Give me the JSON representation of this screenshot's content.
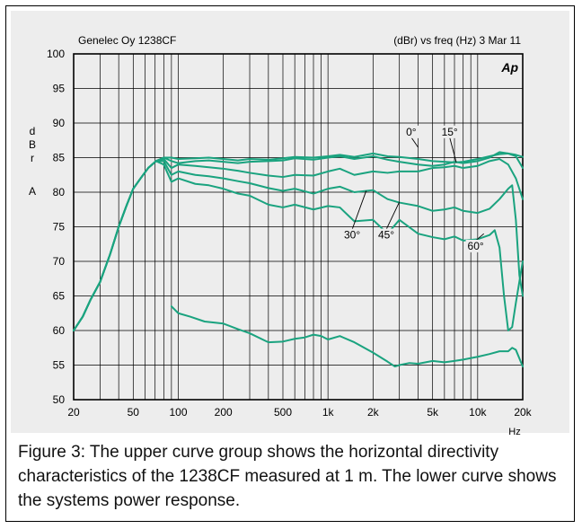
{
  "chart_data": {
    "type": "line",
    "header_left": "Genelec Oy 1238CF",
    "header_right": "(dBr) vs freq (Hz) 3 Mar 11",
    "logo": "Ap",
    "ylabel_letters": [
      "d",
      "B",
      "r",
      "A"
    ],
    "xlabel": "Hz",
    "xscale": "log",
    "xlim": [
      20,
      20000
    ],
    "ylim": [
      50,
      100
    ],
    "grid": true,
    "line_color": "#1aa37f",
    "y_ticks": [
      "100",
      "95",
      "90",
      "85",
      "80",
      "75",
      "70",
      "65",
      "60",
      "55",
      "50"
    ],
    "x_ticks": [
      {
        "value": 20,
        "label": "20"
      },
      {
        "value": 50,
        "label": "50"
      },
      {
        "value": 100,
        "label": "100"
      },
      {
        "value": 200,
        "label": "200"
      },
      {
        "value": 500,
        "label": "500"
      },
      {
        "value": 1000,
        "label": "1k"
      },
      {
        "value": 2000,
        "label": "2k"
      },
      {
        "value": 5000,
        "label": "5k"
      },
      {
        "value": 10000,
        "label": "10k"
      },
      {
        "value": 20000,
        "label": "20k"
      }
    ],
    "series": [
      {
        "name": "0°",
        "points": [
          [
            20,
            60
          ],
          [
            23,
            62
          ],
          [
            26,
            64.5
          ],
          [
            30,
            67
          ],
          [
            35,
            71
          ],
          [
            40,
            75
          ],
          [
            45,
            78
          ],
          [
            50,
            80.5
          ],
          [
            56,
            82
          ],
          [
            63,
            83.5
          ],
          [
            71,
            84.5
          ],
          [
            80,
            85
          ],
          [
            90,
            85
          ],
          [
            100,
            84.8
          ],
          [
            130,
            84.9
          ],
          [
            160,
            85
          ],
          [
            200,
            84.8
          ],
          [
            250,
            84.6
          ],
          [
            300,
            84.8
          ],
          [
            400,
            84.7
          ],
          [
            500,
            84.9
          ],
          [
            600,
            85.1
          ],
          [
            800,
            85
          ],
          [
            1000,
            85.2
          ],
          [
            1200,
            85.4
          ],
          [
            1500,
            85.1
          ],
          [
            2000,
            85.6
          ],
          [
            2500,
            85.2
          ],
          [
            3000,
            85.1
          ],
          [
            4000,
            84.8
          ],
          [
            5000,
            84.5
          ],
          [
            6000,
            84.4
          ],
          [
            7000,
            84.3
          ],
          [
            8000,
            84.4
          ],
          [
            10000,
            84.8
          ],
          [
            12000,
            85.2
          ],
          [
            14000,
            85.5
          ],
          [
            16000,
            85.6
          ],
          [
            18000,
            85.4
          ],
          [
            20000,
            85.1
          ]
        ]
      },
      {
        "name": "15°",
        "points": [
          [
            20,
            60
          ],
          [
            23,
            62
          ],
          [
            26,
            64.5
          ],
          [
            30,
            67
          ],
          [
            35,
            71
          ],
          [
            40,
            75
          ],
          [
            45,
            78
          ],
          [
            50,
            80.5
          ],
          [
            56,
            82
          ],
          [
            63,
            83.5
          ],
          [
            71,
            84.5
          ],
          [
            80,
            85
          ],
          [
            90,
            84.5
          ],
          [
            100,
            84.2
          ],
          [
            130,
            84.5
          ],
          [
            160,
            84.6
          ],
          [
            200,
            84.4
          ],
          [
            250,
            84.2
          ],
          [
            300,
            84.4
          ],
          [
            400,
            84.5
          ],
          [
            500,
            84.6
          ],
          [
            600,
            84.9
          ],
          [
            800,
            84.7
          ],
          [
            1000,
            85
          ],
          [
            1200,
            85.2
          ],
          [
            1500,
            84.8
          ],
          [
            2000,
            85.2
          ],
          [
            2500,
            84.7
          ],
          [
            3000,
            84.4
          ],
          [
            4000,
            84
          ],
          [
            5000,
            83.8
          ],
          [
            6000,
            84
          ],
          [
            7000,
            84.4
          ],
          [
            8000,
            84.2
          ],
          [
            10000,
            84.5
          ],
          [
            12000,
            85
          ],
          [
            14000,
            85.8
          ],
          [
            16000,
            85.6
          ],
          [
            18000,
            85.2
          ],
          [
            20000,
            83.5
          ]
        ]
      },
      {
        "name": "30°",
        "points": [
          [
            20,
            60
          ],
          [
            23,
            62
          ],
          [
            26,
            64.5
          ],
          [
            30,
            67
          ],
          [
            35,
            71
          ],
          [
            40,
            75
          ],
          [
            45,
            78
          ],
          [
            50,
            80.5
          ],
          [
            56,
            82
          ],
          [
            63,
            83.5
          ],
          [
            71,
            84.5
          ],
          [
            80,
            84.8
          ],
          [
            90,
            83.5
          ],
          [
            100,
            84
          ],
          [
            130,
            83.8
          ],
          [
            160,
            83.6
          ],
          [
            200,
            83.4
          ],
          [
            250,
            83.1
          ],
          [
            300,
            82.8
          ],
          [
            400,
            82.4
          ],
          [
            500,
            82.2
          ],
          [
            600,
            82.5
          ],
          [
            800,
            82.4
          ],
          [
            1000,
            83
          ],
          [
            1200,
            83.4
          ],
          [
            1500,
            82.5
          ],
          [
            2000,
            83
          ],
          [
            2500,
            82.8
          ],
          [
            3000,
            83
          ],
          [
            4000,
            83
          ],
          [
            5000,
            83.5
          ],
          [
            6000,
            83.6
          ],
          [
            7000,
            83.8
          ],
          [
            8000,
            83.5
          ],
          [
            10000,
            83.8
          ],
          [
            12000,
            84.5
          ],
          [
            14000,
            84.8
          ],
          [
            16000,
            84
          ],
          [
            18000,
            82
          ],
          [
            20000,
            79
          ]
        ]
      },
      {
        "name": "45°",
        "points": [
          [
            20,
            60
          ],
          [
            23,
            62
          ],
          [
            26,
            64.5
          ],
          [
            30,
            67
          ],
          [
            35,
            71
          ],
          [
            40,
            75
          ],
          [
            45,
            78
          ],
          [
            50,
            80.5
          ],
          [
            56,
            82
          ],
          [
            63,
            83.5
          ],
          [
            71,
            84.5
          ],
          [
            80,
            84.5
          ],
          [
            90,
            82.5
          ],
          [
            100,
            83
          ],
          [
            130,
            82.5
          ],
          [
            160,
            82.3
          ],
          [
            200,
            82
          ],
          [
            250,
            81.6
          ],
          [
            300,
            81.3
          ],
          [
            400,
            80.6
          ],
          [
            500,
            80.2
          ],
          [
            600,
            80.5
          ],
          [
            800,
            79.8
          ],
          [
            1000,
            80.5
          ],
          [
            1200,
            80.8
          ],
          [
            1500,
            80
          ],
          [
            2000,
            80.3
          ],
          [
            2500,
            79
          ],
          [
            3000,
            78.5
          ],
          [
            4000,
            78
          ],
          [
            5000,
            77.3
          ],
          [
            6000,
            77.5
          ],
          [
            7000,
            77.8
          ],
          [
            8000,
            77.3
          ],
          [
            10000,
            77
          ],
          [
            12000,
            77.6
          ],
          [
            14000,
            79
          ],
          [
            16000,
            80.5
          ],
          [
            17000,
            81
          ],
          [
            18000,
            76
          ],
          [
            19000,
            68
          ],
          [
            20000,
            65
          ]
        ]
      },
      {
        "name": "60°",
        "points": [
          [
            20,
            60
          ],
          [
            23,
            62
          ],
          [
            26,
            64.5
          ],
          [
            30,
            67
          ],
          [
            35,
            71
          ],
          [
            40,
            75
          ],
          [
            45,
            78
          ],
          [
            50,
            80.5
          ],
          [
            56,
            82
          ],
          [
            63,
            83.5
          ],
          [
            71,
            84.5
          ],
          [
            80,
            84
          ],
          [
            90,
            81.5
          ],
          [
            100,
            82
          ],
          [
            130,
            81.2
          ],
          [
            160,
            81
          ],
          [
            200,
            80.5
          ],
          [
            250,
            79.8
          ],
          [
            300,
            79.5
          ],
          [
            400,
            78.2
          ],
          [
            500,
            77.8
          ],
          [
            600,
            78.2
          ],
          [
            800,
            77.5
          ],
          [
            1000,
            78
          ],
          [
            1200,
            77.8
          ],
          [
            1500,
            75.8
          ],
          [
            2000,
            76
          ],
          [
            2500,
            74
          ],
          [
            3000,
            76
          ],
          [
            4000,
            74
          ],
          [
            5000,
            73.5
          ],
          [
            6000,
            73.2
          ],
          [
            7000,
            73.6
          ],
          [
            8000,
            73
          ],
          [
            10000,
            73.2
          ],
          [
            12000,
            73.8
          ],
          [
            13000,
            74.5
          ],
          [
            14000,
            72
          ],
          [
            15000,
            65
          ],
          [
            16000,
            60
          ],
          [
            17000,
            60.5
          ],
          [
            18000,
            64
          ],
          [
            20000,
            70
          ]
        ]
      },
      {
        "name": "power",
        "points": [
          [
            90,
            63.5
          ],
          [
            100,
            62.5
          ],
          [
            120,
            62
          ],
          [
            150,
            61.3
          ],
          [
            200,
            61
          ],
          [
            250,
            60.2
          ],
          [
            300,
            59.6
          ],
          [
            400,
            58.3
          ],
          [
            500,
            58.4
          ],
          [
            600,
            58.8
          ],
          [
            700,
            59
          ],
          [
            800,
            59.4
          ],
          [
            900,
            59.2
          ],
          [
            1000,
            58.7
          ],
          [
            1200,
            59.2
          ],
          [
            1500,
            58.3
          ],
          [
            2000,
            56.8
          ],
          [
            2500,
            55.5
          ],
          [
            2800,
            54.8
          ],
          [
            3000,
            55
          ],
          [
            3500,
            55.3
          ],
          [
            4000,
            55.2
          ],
          [
            5000,
            55.6
          ],
          [
            6000,
            55.4
          ],
          [
            7000,
            55.6
          ],
          [
            8000,
            55.8
          ],
          [
            10000,
            56.2
          ],
          [
            12000,
            56.6
          ],
          [
            14000,
            57
          ],
          [
            16000,
            57
          ],
          [
            17000,
            57.5
          ],
          [
            18000,
            57.2
          ],
          [
            20000,
            54.8
          ]
        ]
      }
    ],
    "annotations": [
      {
        "text": "0°",
        "x": 4000,
        "y": 86.5,
        "tx": 3600,
        "ty": 88.2
      },
      {
        "text": "15°",
        "x": 7200,
        "y": 84.3,
        "tx": 6500,
        "ty": 88.2
      },
      {
        "text": "30°",
        "x": 1800,
        "y": 80.2,
        "tx": 1450,
        "ty": 73.3
      },
      {
        "text": "45°",
        "x": 3000,
        "y": 78.6,
        "tx": 2450,
        "ty": 73.3
      },
      {
        "text": "60°",
        "x": 11000,
        "y": 74,
        "tx": 9700,
        "ty": 71.7
      }
    ]
  },
  "caption": "Figure 3: The upper curve group shows the horizontal directivity characteristics of the 1238CF measured at 1 m. The lower curve shows the systems power response."
}
